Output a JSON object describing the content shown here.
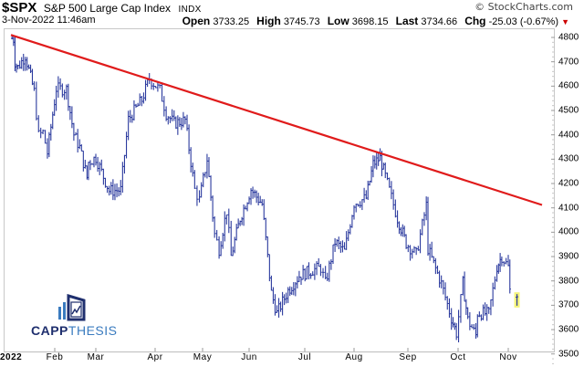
{
  "header": {
    "symbol": "$SPX",
    "name": "S&P 500 Large Cap Index",
    "exchange": "INDX",
    "copyright": "© StockCharts.com",
    "datetime": "3-Nov-2022 11:46am",
    "open_label": "Open",
    "open": "3733.25",
    "high_label": "High",
    "high": "3745.73",
    "low_label": "Low",
    "low": "3698.15",
    "last_label": "Last",
    "last": "3734.66",
    "chg_label": "Chg",
    "chg": "-25.03 (-0.67%)",
    "chg_arrow": "▼"
  },
  "logo": {
    "part1": "CAPP",
    "part2": "THESIS"
  },
  "colors": {
    "bars": "#2b3a9e",
    "trendline": "#e01b1b",
    "last_bar_highlight": "#f4f47a"
  },
  "chart_data": {
    "type": "ohlc",
    "title": "$SPX S&P 500 Large Cap Index INDX",
    "subtitle": "3-Nov-2022 11:46am",
    "xlabel": "",
    "ylabel": "",
    "ylim": [
      3470,
      4840
    ],
    "y_ticks": [
      4800,
      4700,
      4600,
      4500,
      4400,
      4300,
      4200,
      4100,
      4000,
      3900,
      3800,
      3700,
      3600,
      3500
    ],
    "x_ticks": [
      "2022",
      "Feb",
      "Mar",
      "Apr",
      "May",
      "Jun",
      "Jul",
      "Aug",
      "Sep",
      "Oct",
      "Nov"
    ],
    "y_axis_side": "right",
    "grid": false,
    "series": [
      {
        "name": "$SPX daily close (approx.)",
        "x": [
          "Jan 3",
          "Jan 4",
          "Jan 5",
          "Jan 7",
          "Jan 12",
          "Jan 18",
          "Jan 21",
          "Jan 24",
          "Jan 27",
          "Feb 2",
          "Feb 9",
          "Feb 14",
          "Feb 18",
          "Feb 23",
          "Feb 24",
          "Mar 1",
          "Mar 8",
          "Mar 14",
          "Mar 18",
          "Mar 25",
          "Mar 29",
          "Apr 4",
          "Apr 8",
          "Apr 13",
          "Apr 20",
          "Apr 26",
          "Apr 29",
          "May 4",
          "May 9",
          "May 12",
          "May 17",
          "May 20",
          "May 26",
          "Jun 2",
          "Jun 8",
          "Jun 13",
          "Jun 16",
          "Jun 22",
          "Jun 28",
          "Jul 6",
          "Jul 11",
          "Jul 14",
          "Jul 20",
          "Jul 26",
          "Aug 1",
          "Aug 8",
          "Aug 12",
          "Aug 16",
          "Aug 19",
          "Aug 26",
          "Aug 31",
          "Sep 6",
          "Sep 12",
          "Sep 13",
          "Sep 21",
          "Sep 27",
          "Sep 30",
          "Oct 4",
          "Oct 7",
          "Oct 12",
          "Oct 13",
          "Oct 20",
          "Oct 25",
          "Oct 28",
          "Nov 1",
          "Nov 2",
          "Nov 3"
        ],
        "values": [
          4796,
          4793,
          4700,
          4677,
          4726,
          4577,
          4398,
          4410,
          4326,
          4590,
          4587,
          4401,
          4348,
          4225,
          4288,
          4306,
          4170,
          4173,
          4463,
          4543,
          4631,
          4583,
          4488,
          4447,
          4460,
          4175,
          4132,
          4300,
          3991,
          3930,
          4088,
          3901,
          4057,
          4176,
          4115,
          3750,
          3667,
          3760,
          3821,
          3845,
          3854,
          3790,
          3960,
          3921,
          4119,
          4140,
          4280,
          4305,
          4228,
          4057,
          3955,
          3908,
          4110,
          3932,
          3789,
          3647,
          3586,
          3791,
          3640,
          3577,
          3669,
          3665,
          3859,
          3901,
          3856,
          3760,
          3734
        ]
      },
      {
        "name": "Downtrend line",
        "x": [
          "Jan 3",
          "Nov 10"
        ],
        "values": [
          4810,
          4112
        ]
      }
    ],
    "last": {
      "open": 3733.25,
      "high": 3745.73,
      "low": 3698.15,
      "close": 3734.66,
      "change": -25.03,
      "change_pct": -0.67
    }
  }
}
